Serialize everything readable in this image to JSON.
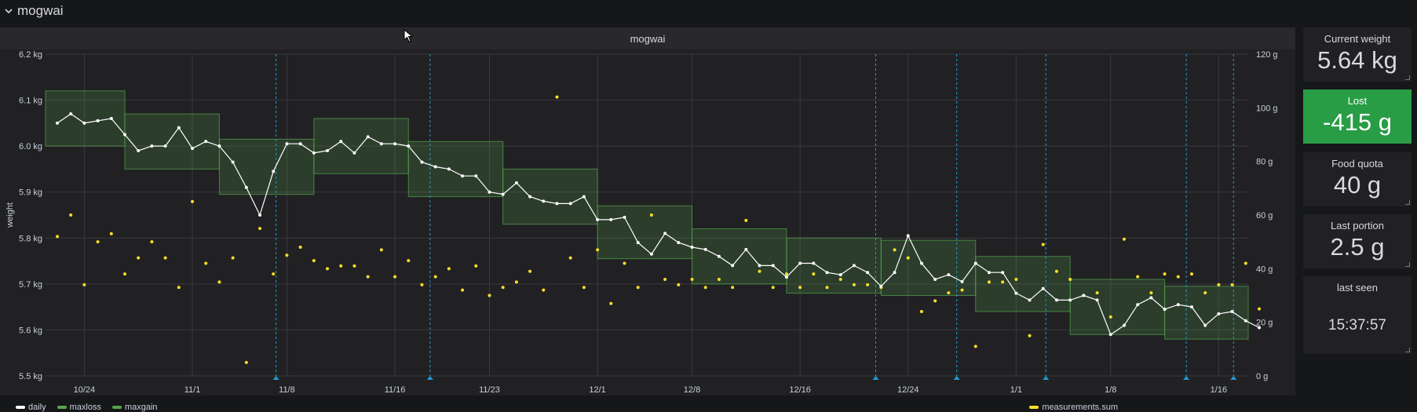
{
  "row": {
    "title": "mogwai"
  },
  "panel": {
    "title": "mogwai"
  },
  "legend": {
    "left": [
      {
        "name": "daily",
        "color": "#ffffff"
      },
      {
        "name": "maxloss",
        "color": "#56A64B"
      },
      {
        "name": "maxgain",
        "color": "#56A64B"
      }
    ],
    "right": [
      {
        "name": "measurements.sum",
        "color": "#FADE2A"
      }
    ]
  },
  "stats": [
    {
      "title": "Current weight",
      "value": "5.64 kg"
    },
    {
      "title": "Lost",
      "value": "-415 g"
    },
    {
      "title": "Food quota",
      "value": "40 g"
    },
    {
      "title": "Last portion",
      "value": "2.5 g"
    },
    {
      "title": "last seen",
      "value": "15:37:57"
    }
  ],
  "colors": {
    "band": "#56A64B",
    "measurements": "#FADE2A",
    "annotation": "#1F9CD7",
    "daily": "#ffffff",
    "lost_bg": "#299c46"
  },
  "chart_data": {
    "type": "line",
    "ylabel": "weight",
    "y_left": {
      "min": 5.5,
      "max": 6.2,
      "ticks": [
        "5.5 kg",
        "5.6 kg",
        "5.7 kg",
        "5.8 kg",
        "5.9 kg",
        "6.0 kg",
        "6.1 kg",
        "6.2 kg"
      ]
    },
    "y_right": {
      "min": 0,
      "max": 120,
      "ticks": [
        "0 g",
        "20 g",
        "40 g",
        "60 g",
        "80 g",
        "100 g",
        "120 g"
      ]
    },
    "x_ticks": [
      {
        "label": "10/24",
        "day": 24
      },
      {
        "label": "11/1",
        "day": 32
      },
      {
        "label": "11/8",
        "day": 39
      },
      {
        "label": "11/16",
        "day": 47
      },
      {
        "label": "11/23",
        "day": 54
      },
      {
        "label": "12/1",
        "day": 62
      },
      {
        "label": "12/8",
        "day": 69
      },
      {
        "label": "12/16",
        "day": 77
      },
      {
        "label": "12/24",
        "day": 85
      },
      {
        "label": "1/1",
        "day": 93
      },
      {
        "label": "1/8",
        "day": 100
      },
      {
        "label": "1/16",
        "day": 108
      }
    ],
    "x_range": [
      20,
      109.3
    ],
    "annotations": [
      38.2,
      49.6,
      82.6,
      88.6,
      95.2,
      105.6,
      109.1
    ],
    "series": [
      {
        "name": "daily",
        "axis": "left",
        "color": "#ffffff",
        "points": [
          [
            22,
            6.05
          ],
          [
            23,
            6.07
          ],
          [
            24,
            6.05
          ],
          [
            25,
            6.055
          ],
          [
            26,
            6.06
          ],
          [
            27,
            6.025
          ],
          [
            28,
            5.99
          ],
          [
            29,
            6.0
          ],
          [
            30,
            6.0
          ],
          [
            31,
            6.04
          ],
          [
            32,
            5.995
          ],
          [
            33,
            6.01
          ],
          [
            34,
            6.0
          ],
          [
            35,
            5.965
          ],
          [
            36,
            5.91
          ],
          [
            37,
            5.85
          ],
          [
            38,
            5.945
          ],
          [
            39,
            6.005
          ],
          [
            40,
            6.005
          ],
          [
            41,
            5.985
          ],
          [
            42,
            5.99
          ],
          [
            43,
            6.01
          ],
          [
            44,
            5.985
          ],
          [
            45,
            6.02
          ],
          [
            46,
            6.005
          ],
          [
            47,
            6.005
          ],
          [
            48,
            6.0
          ],
          [
            49,
            5.965
          ],
          [
            50,
            5.955
          ],
          [
            51,
            5.95
          ],
          [
            52,
            5.935
          ],
          [
            53,
            5.935
          ],
          [
            54,
            5.9
          ],
          [
            55,
            5.895
          ],
          [
            56,
            5.92
          ],
          [
            57,
            5.89
          ],
          [
            58,
            5.88
          ],
          [
            59,
            5.875
          ],
          [
            60,
            5.875
          ],
          [
            61,
            5.89
          ],
          [
            62,
            5.84
          ],
          [
            63,
            5.84
          ],
          [
            64,
            5.845
          ],
          [
            65,
            5.79
          ],
          [
            66,
            5.765
          ],
          [
            67,
            5.81
          ],
          [
            68,
            5.79
          ],
          [
            69,
            5.78
          ],
          [
            70,
            5.775
          ],
          [
            71,
            5.76
          ],
          [
            72,
            5.74
          ],
          [
            73,
            5.775
          ],
          [
            74,
            5.74
          ],
          [
            75,
            5.74
          ],
          [
            76,
            5.715
          ],
          [
            77,
            5.745
          ],
          [
            78,
            5.745
          ],
          [
            79,
            5.725
          ],
          [
            80,
            5.72
          ],
          [
            81,
            5.74
          ],
          [
            82,
            5.725
          ],
          [
            83,
            5.695
          ],
          [
            84,
            5.725
          ],
          [
            85,
            5.805
          ],
          [
            86,
            5.745
          ],
          [
            87,
            5.71
          ],
          [
            88,
            5.72
          ],
          [
            89,
            5.705
          ],
          [
            90,
            5.745
          ],
          [
            91,
            5.725
          ],
          [
            92,
            5.725
          ],
          [
            93,
            5.68
          ],
          [
            94,
            5.665
          ],
          [
            95,
            5.69
          ],
          [
            96,
            5.665
          ],
          [
            97,
            5.665
          ],
          [
            98,
            5.675
          ],
          [
            99,
            5.665
          ],
          [
            100,
            5.59
          ],
          [
            101,
            5.61
          ],
          [
            102,
            5.655
          ],
          [
            103,
            5.67
          ],
          [
            104,
            5.645
          ],
          [
            105,
            5.655
          ],
          [
            106,
            5.65
          ],
          [
            107,
            5.61
          ],
          [
            108,
            5.635
          ],
          [
            109,
            5.64
          ],
          [
            110,
            5.62
          ],
          [
            111,
            5.605
          ]
        ]
      },
      {
        "name": "measurements.sum",
        "axis": "right",
        "color": "#FADE2A",
        "points": [
          [
            22,
            52
          ],
          [
            23,
            60
          ],
          [
            24,
            34
          ],
          [
            25,
            50
          ],
          [
            26,
            53
          ],
          [
            27,
            38
          ],
          [
            28,
            44
          ],
          [
            29,
            50
          ],
          [
            30,
            44
          ],
          [
            31,
            33
          ],
          [
            32,
            65
          ],
          [
            33,
            42
          ],
          [
            34,
            35
          ],
          [
            35,
            44
          ],
          [
            36,
            5
          ],
          [
            37,
            55
          ],
          [
            38,
            38
          ],
          [
            39,
            45
          ],
          [
            40,
            48
          ],
          [
            41,
            43
          ],
          [
            42,
            40
          ],
          [
            43,
            41
          ],
          [
            44,
            41
          ],
          [
            45,
            37
          ],
          [
            46,
            47
          ],
          [
            47,
            37
          ],
          [
            48,
            43
          ],
          [
            49,
            34
          ],
          [
            50,
            37
          ],
          [
            51,
            40
          ],
          [
            52,
            32
          ],
          [
            53,
            41
          ],
          [
            54,
            30
          ],
          [
            55,
            33
          ],
          [
            56,
            35
          ],
          [
            57,
            39
          ],
          [
            58,
            32
          ],
          [
            59,
            104
          ],
          [
            60,
            44
          ],
          [
            61,
            33
          ],
          [
            62,
            47
          ],
          [
            63,
            27
          ],
          [
            64,
            42
          ],
          [
            65,
            33
          ],
          [
            66,
            60
          ],
          [
            67,
            36
          ],
          [
            68,
            34
          ],
          [
            69,
            36
          ],
          [
            70,
            33
          ],
          [
            71,
            36
          ],
          [
            72,
            33
          ],
          [
            73,
            58
          ],
          [
            74,
            39
          ],
          [
            75,
            33
          ],
          [
            76,
            38
          ],
          [
            77,
            33
          ],
          [
            78,
            38
          ],
          [
            79,
            33
          ],
          [
            80,
            36
          ],
          [
            81,
            34
          ],
          [
            82,
            34
          ],
          [
            83,
            33
          ],
          [
            84,
            47
          ],
          [
            85,
            44
          ],
          [
            86,
            24
          ],
          [
            87,
            28
          ],
          [
            88,
            31
          ],
          [
            89,
            32
          ],
          [
            90,
            11
          ],
          [
            91,
            35
          ],
          [
            92,
            35
          ],
          [
            93,
            36
          ],
          [
            94,
            15
          ],
          [
            95,
            49
          ],
          [
            96,
            39
          ],
          [
            97,
            36
          ],
          [
            98,
            30
          ],
          [
            99,
            31
          ],
          [
            100,
            22
          ],
          [
            101,
            51
          ],
          [
            102,
            37
          ],
          [
            103,
            31
          ],
          [
            104,
            38
          ],
          [
            105,
            37
          ],
          [
            106,
            38
          ],
          [
            107,
            31
          ],
          [
            108,
            34
          ],
          [
            109,
            34
          ],
          [
            110,
            42
          ],
          [
            111,
            25
          ]
        ]
      },
      {
        "name": "maxloss/maxgain",
        "axis": "left",
        "color": "#56A64B",
        "steps": [
          [
            20,
            27,
            6.0,
            6.12
          ],
          [
            27,
            34,
            5.95,
            6.07
          ],
          [
            34,
            41,
            5.895,
            6.015
          ],
          [
            41,
            48,
            5.94,
            6.06
          ],
          [
            48,
            55,
            5.89,
            6.01
          ],
          [
            55,
            62,
            5.83,
            5.95
          ],
          [
            62,
            69,
            5.755,
            5.87
          ],
          [
            69,
            76,
            5.7,
            5.82
          ],
          [
            76,
            83,
            5.68,
            5.8
          ],
          [
            83,
            90,
            5.675,
            5.795
          ],
          [
            90,
            97,
            5.64,
            5.76
          ],
          [
            97,
            104,
            5.59,
            5.71
          ],
          [
            104,
            111,
            5.58,
            5.695
          ]
        ]
      }
    ]
  }
}
